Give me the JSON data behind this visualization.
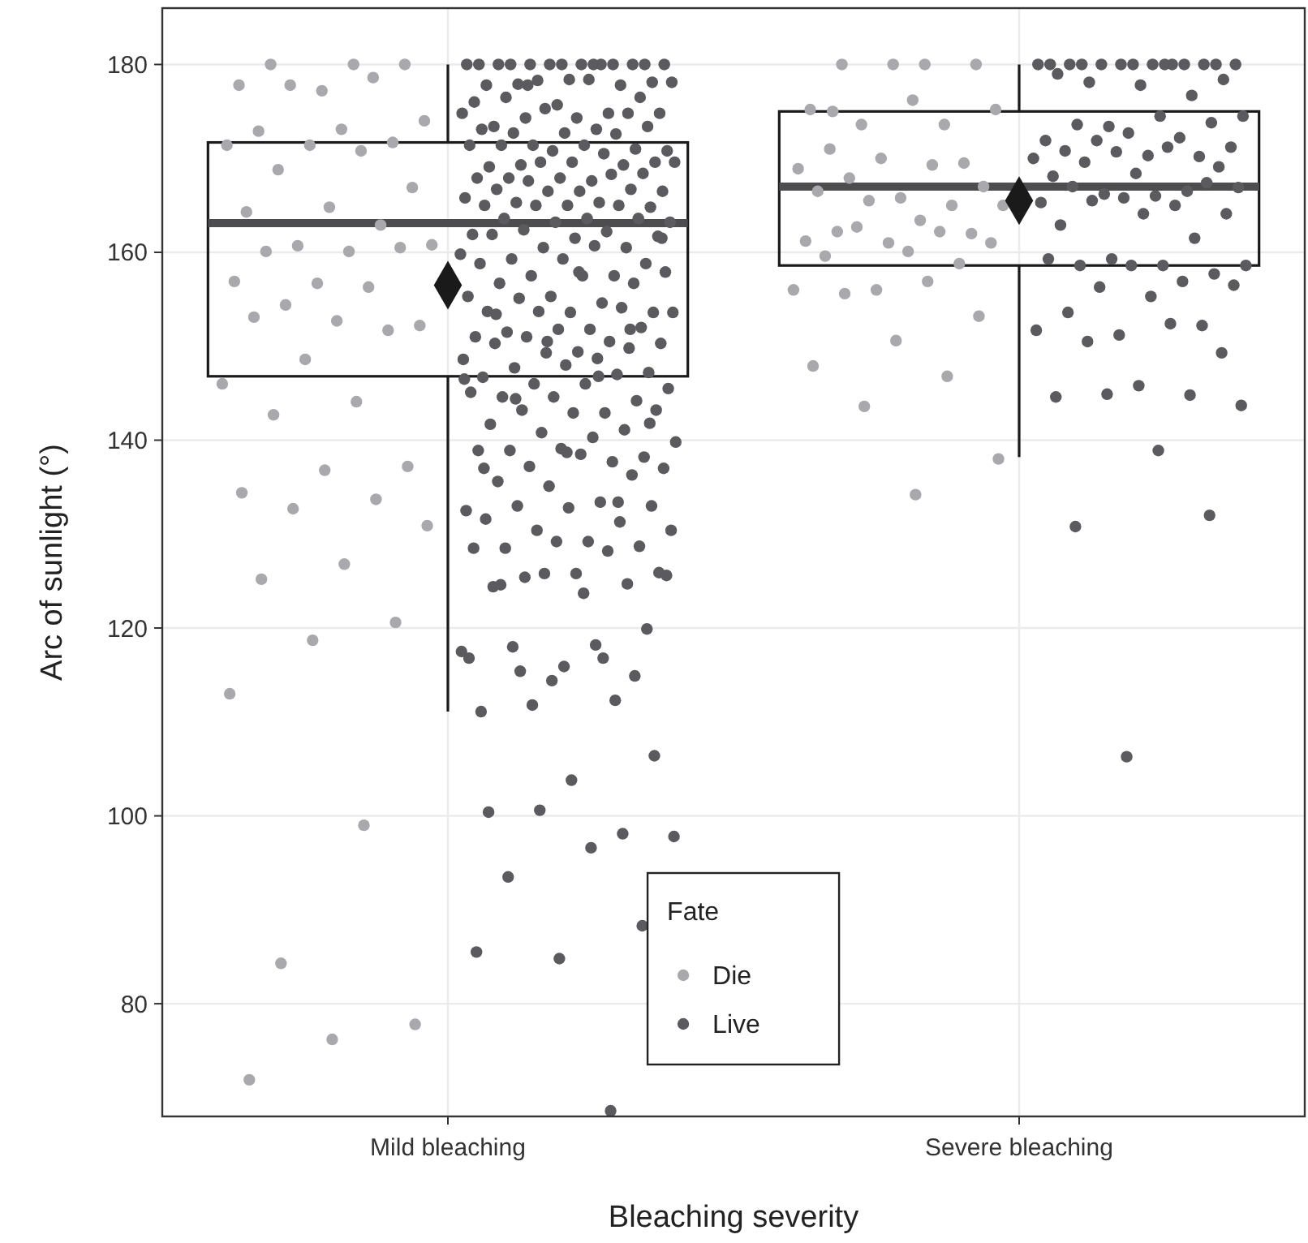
{
  "chart_data": {
    "type": "box",
    "xlabel": "Bleaching severity",
    "ylabel": "Arc of sunlight (°)",
    "legend_title": "Fate",
    "categories": [
      "Mild bleaching",
      "Severe bleaching"
    ],
    "ylim": [
      68,
      186
    ],
    "yticks": [
      80,
      100,
      120,
      140,
      160,
      180
    ],
    "grid": true,
    "legend": "bottom",
    "marker": "circle",
    "series": [
      {
        "color": "#1a1a1a",
        "boxes": [
          {
            "low": 111.1,
            "q1": 146.8,
            "median": 163.1,
            "q3": 171.7,
            "high": 180,
            "mean": 156.5
          },
          {
            "low": 138.2,
            "q1": 158.6,
            "median": 167.0,
            "q3": 175.0,
            "high": 180,
            "mean": 165.5
          }
        ]
      },
      {
        "type": "scatter",
        "name": "Die",
        "color": "#a9a9ad",
        "x": [
          "Mild bleaching",
          "Mild bleaching",
          "Mild bleaching",
          "Mild bleaching",
          "Mild bleaching",
          "Mild bleaching",
          "Mild bleaching",
          "Mild bleaching",
          "Mild bleaching",
          "Mild bleaching",
          "Mild bleaching",
          "Mild bleaching",
          "Mild bleaching",
          "Mild bleaching",
          "Mild bleaching",
          "Mild bleaching",
          "Mild bleaching",
          "Mild bleaching",
          "Mild bleaching",
          "Mild bleaching",
          "Mild bleaching",
          "Mild bleaching",
          "Mild bleaching",
          "Mild bleaching",
          "Mild bleaching",
          "Mild bleaching",
          "Mild bleaching",
          "Mild bleaching",
          "Mild bleaching",
          "Mild bleaching",
          "Mild bleaching",
          "Mild bleaching",
          "Mild bleaching",
          "Mild bleaching",
          "Mild bleaching",
          "Mild bleaching",
          "Mild bleaching",
          "Mild bleaching",
          "Mild bleaching",
          "Mild bleaching",
          "Mild bleaching",
          "Mild bleaching",
          "Mild bleaching",
          "Mild bleaching",
          "Mild bleaching",
          "Mild bleaching",
          "Mild bleaching",
          "Mild bleaching",
          "Mild bleaching",
          "Mild bleaching",
          "Mild bleaching",
          "Mild bleaching",
          "Severe bleaching",
          "Severe bleaching",
          "Severe bleaching",
          "Severe bleaching",
          "Severe bleaching",
          "Severe bleaching",
          "Severe bleaching",
          "Severe bleaching",
          "Severe bleaching",
          "Severe bleaching",
          "Severe bleaching",
          "Severe bleaching",
          "Severe bleaching",
          "Severe bleaching",
          "Severe bleaching",
          "Severe bleaching",
          "Severe bleaching",
          "Severe bleaching",
          "Severe bleaching",
          "Severe bleaching",
          "Severe bleaching",
          "Severe bleaching",
          "Severe bleaching",
          "Severe bleaching",
          "Severe bleaching",
          "Severe bleaching",
          "Severe bleaching",
          "Severe bleaching",
          "Severe bleaching",
          "Severe bleaching",
          "Severe bleaching",
          "Severe bleaching",
          "Severe bleaching",
          "Severe bleaching",
          "Severe bleaching",
          "Severe bleaching",
          "Severe bleaching",
          "Severe bleaching",
          "Severe bleaching",
          "Severe bleaching",
          "Severe bleaching",
          "Severe bleaching",
          "Severe bleaching",
          "Severe bleaching"
        ],
        "values": [
          180,
          180,
          180,
          177.2,
          177.8,
          178.6,
          177.8,
          174.0,
          173.1,
          172.9,
          171.7,
          171.4,
          171.4,
          170.8,
          168.8,
          166.9,
          164.8,
          164.3,
          162.9,
          160.7,
          160.8,
          160.1,
          160.1,
          160.5,
          156.7,
          156.9,
          156.3,
          154.4,
          152.2,
          152.7,
          153.1,
          151.7,
          148.6,
          146.0,
          144.1,
          142.7,
          137.2,
          136.8,
          134.4,
          133.7,
          132.7,
          130.9,
          126.8,
          125.2,
          120.6,
          118.7,
          113.0,
          99.0,
          84.3,
          77.8,
          76.2,
          71.9,
          180,
          180,
          180,
          180,
          175.2,
          173.6,
          173.6,
          175.2,
          176.2,
          171.0,
          169.5,
          170.0,
          168.9,
          169.3,
          167.9,
          167.0,
          165.8,
          166.5,
          165.0,
          165.5,
          165.0,
          163.4,
          162.2,
          162.0,
          161.0,
          161.2,
          162.2,
          162.7,
          161.0,
          160.1,
          159.6,
          158.8,
          156.0,
          156.0,
          156.9,
          155.6,
          153.2,
          150.6,
          147.9,
          146.8,
          143.6,
          138.0,
          134.2,
          175.0
        ]
      },
      {
        "type": "scatter",
        "name": "Live",
        "color": "#5b5b5f",
        "x": [
          "Mild bleaching",
          "Mild bleaching",
          "Mild bleaching",
          "Mild bleaching",
          "Mild bleaching",
          "Mild bleaching",
          "Mild bleaching",
          "Mild bleaching",
          "Mild bleaching",
          "Mild bleaching",
          "Mild bleaching",
          "Mild bleaching",
          "Mild bleaching",
          "Mild bleaching",
          "Mild bleaching",
          "Mild bleaching",
          "Mild bleaching",
          "Mild bleaching",
          "Mild bleaching",
          "Mild bleaching",
          "Mild bleaching",
          "Mild bleaching",
          "Mild bleaching",
          "Mild bleaching",
          "Mild bleaching",
          "Mild bleaching",
          "Mild bleaching",
          "Mild bleaching",
          "Mild bleaching",
          "Mild bleaching",
          "Mild bleaching",
          "Mild bleaching",
          "Mild bleaching",
          "Mild bleaching",
          "Mild bleaching",
          "Mild bleaching",
          "Mild bleaching",
          "Mild bleaching",
          "Mild bleaching",
          "Mild bleaching",
          "Mild bleaching",
          "Mild bleaching",
          "Mild bleaching",
          "Mild bleaching",
          "Mild bleaching",
          "Mild bleaching",
          "Mild bleaching",
          "Mild bleaching",
          "Mild bleaching",
          "Mild bleaching",
          "Mild bleaching",
          "Mild bleaching",
          "Mild bleaching",
          "Mild bleaching",
          "Mild bleaching",
          "Mild bleaching",
          "Mild bleaching",
          "Mild bleaching",
          "Mild bleaching",
          "Mild bleaching",
          "Mild bleaching",
          "Mild bleaching",
          "Mild bleaching",
          "Mild bleaching",
          "Mild bleaching",
          "Mild bleaching",
          "Mild bleaching",
          "Mild bleaching",
          "Mild bleaching",
          "Mild bleaching",
          "Mild bleaching",
          "Mild bleaching",
          "Mild bleaching",
          "Mild bleaching",
          "Mild bleaching",
          "Mild bleaching",
          "Mild bleaching",
          "Mild bleaching",
          "Mild bleaching",
          "Mild bleaching",
          "Mild bleaching",
          "Mild bleaching",
          "Mild bleaching",
          "Mild bleaching",
          "Mild bleaching",
          "Mild bleaching",
          "Mild bleaching",
          "Mild bleaching",
          "Mild bleaching",
          "Mild bleaching",
          "Mild bleaching",
          "Mild bleaching",
          "Mild bleaching",
          "Mild bleaching",
          "Mild bleaching",
          "Mild bleaching",
          "Mild bleaching",
          "Mild bleaching",
          "Mild bleaching",
          "Mild bleaching",
          "Mild bleaching",
          "Mild bleaching",
          "Mild bleaching",
          "Mild bleaching",
          "Mild bleaching",
          "Mild bleaching",
          "Mild bleaching",
          "Mild bleaching",
          "Mild bleaching",
          "Mild bleaching",
          "Mild bleaching",
          "Mild bleaching",
          "Mild bleaching",
          "Mild bleaching",
          "Mild bleaching",
          "Mild bleaching",
          "Mild bleaching",
          "Mild bleaching",
          "Mild bleaching",
          "Mild bleaching",
          "Mild bleaching",
          "Mild bleaching",
          "Mild bleaching",
          "Mild bleaching",
          "Mild bleaching",
          "Mild bleaching",
          "Mild bleaching",
          "Mild bleaching",
          "Mild bleaching",
          "Mild bleaching",
          "Mild bleaching",
          "Mild bleaching",
          "Mild bleaching",
          "Mild bleaching",
          "Mild bleaching",
          "Mild bleaching",
          "Mild bleaching",
          "Mild bleaching",
          "Mild bleaching",
          "Mild bleaching",
          "Mild bleaching",
          "Mild bleaching",
          "Mild bleaching",
          "Mild bleaching",
          "Mild bleaching",
          "Mild bleaching",
          "Mild bleaching",
          "Mild bleaching",
          "Mild bleaching",
          "Mild bleaching",
          "Mild bleaching",
          "Mild bleaching",
          "Mild bleaching",
          "Mild bleaching",
          "Mild bleaching",
          "Mild bleaching",
          "Mild bleaching",
          "Mild bleaching",
          "Mild bleaching",
          "Mild bleaching",
          "Mild bleaching",
          "Mild bleaching",
          "Mild bleaching",
          "Mild bleaching",
          "Mild bleaching",
          "Mild bleaching",
          "Mild bleaching",
          "Mild bleaching",
          "Mild bleaching",
          "Mild bleaching",
          "Mild bleaching",
          "Mild bleaching",
          "Mild bleaching",
          "Mild bleaching",
          "Mild bleaching",
          "Mild bleaching",
          "Mild bleaching",
          "Mild bleaching",
          "Mild bleaching",
          "Mild bleaching",
          "Mild bleaching",
          "Mild bleaching",
          "Mild bleaching",
          "Mild bleaching",
          "Mild bleaching",
          "Mild bleaching",
          "Mild bleaching",
          "Mild bleaching",
          "Mild bleaching",
          "Mild bleaching",
          "Mild bleaching",
          "Mild bleaching",
          "Mild bleaching",
          "Mild bleaching",
          "Mild bleaching",
          "Mild bleaching",
          "Mild bleaching",
          "Mild bleaching",
          "Mild bleaching",
          "Mild bleaching",
          "Mild bleaching",
          "Mild bleaching",
          "Mild bleaching",
          "Mild bleaching",
          "Mild bleaching",
          "Mild bleaching",
          "Mild bleaching",
          "Mild bleaching",
          "Mild bleaching",
          "Mild bleaching",
          "Mild bleaching",
          "Mild bleaching",
          "Mild bleaching",
          "Mild bleaching",
          "Mild bleaching",
          "Mild bleaching",
          "Mild bleaching",
          "Mild bleaching",
          "Severe bleaching",
          "Severe bleaching",
          "Severe bleaching",
          "Severe bleaching",
          "Severe bleaching",
          "Severe bleaching",
          "Severe bleaching",
          "Severe bleaching",
          "Severe bleaching",
          "Severe bleaching",
          "Severe bleaching",
          "Severe bleaching",
          "Severe bleaching",
          "Severe bleaching",
          "Severe bleaching",
          "Severe bleaching",
          "Severe bleaching",
          "Severe bleaching",
          "Severe bleaching",
          "Severe bleaching",
          "Severe bleaching",
          "Severe bleaching",
          "Severe bleaching",
          "Severe bleaching",
          "Severe bleaching",
          "Severe bleaching",
          "Severe bleaching",
          "Severe bleaching",
          "Severe bleaching",
          "Severe bleaching",
          "Severe bleaching",
          "Severe bleaching",
          "Severe bleaching",
          "Severe bleaching",
          "Severe bleaching",
          "Severe bleaching",
          "Severe bleaching",
          "Severe bleaching",
          "Severe bleaching",
          "Severe bleaching",
          "Severe bleaching",
          "Severe bleaching",
          "Severe bleaching",
          "Severe bleaching",
          "Severe bleaching",
          "Severe bleaching",
          "Severe bleaching",
          "Severe bleaching",
          "Severe bleaching",
          "Severe bleaching",
          "Severe bleaching",
          "Severe bleaching",
          "Severe bleaching",
          "Severe bleaching",
          "Severe bleaching",
          "Severe bleaching",
          "Severe bleaching",
          "Severe bleaching",
          "Severe bleaching",
          "Severe bleaching",
          "Severe bleaching",
          "Severe bleaching",
          "Severe bleaching",
          "Severe bleaching",
          "Severe bleaching",
          "Severe bleaching",
          "Severe bleaching",
          "Severe bleaching",
          "Severe bleaching",
          "Severe bleaching",
          "Severe bleaching",
          "Severe bleaching",
          "Severe bleaching",
          "Severe bleaching",
          "Severe bleaching",
          "Severe bleaching",
          "Severe bleaching",
          "Severe bleaching",
          "Severe bleaching",
          "Severe bleaching"
        ],
        "values": [
          180,
          180,
          180,
          180,
          180,
          180,
          180,
          180,
          180,
          180,
          180,
          180,
          180,
          180,
          177.9,
          178.1,
          178.4,
          177.8,
          177.8,
          178.3,
          178.1,
          178.4,
          176.5,
          176.5,
          175.7,
          176.0,
          174.8,
          174.3,
          174.8,
          174.3,
          173.4,
          174.8,
          175.3,
          174.8,
          173.1,
          172.7,
          173.4,
          172.7,
          173.1,
          172.6,
          171.4,
          170.8,
          171.4,
          171.4,
          171.0,
          170.8,
          171.4,
          170.5,
          169.3,
          169.6,
          169.6,
          169.1,
          169.3,
          169.6,
          169.6,
          167.6,
          167.9,
          168.4,
          167.9,
          167.9,
          168.3,
          167.6,
          166.5,
          166.5,
          166.7,
          166.7,
          166.5,
          165.8,
          165.3,
          165.3,
          164.8,
          165.0,
          165.0,
          165.0,
          165.0,
          163.2,
          163.6,
          163.6,
          163.6,
          163.2,
          161.9,
          162.2,
          162.4,
          161.7,
          161.5,
          161.9,
          160.5,
          160.5,
          159.8,
          160.7,
          159.3,
          158.8,
          159.3,
          158.8,
          157.5,
          157.5,
          157.9,
          157.5,
          156.7,
          156.7,
          155.3,
          155.3,
          154.6,
          155.1,
          153.6,
          153.6,
          153.7,
          154.1,
          153.7,
          153.6,
          151.8,
          151.5,
          152.0,
          151.8,
          151.0,
          150.5,
          151.0,
          150.3,
          149.4,
          150.3,
          149.8,
          149.3,
          148.6,
          148.7,
          147.7,
          147.2,
          148.0,
          146.7,
          147.0,
          146.0,
          145.5,
          146.0,
          144.6,
          144.2,
          144.6,
          145.1,
          142.9,
          143.2,
          143.2,
          142.9,
          141.7,
          141.1,
          140.8,
          139.8,
          140.3,
          138.9,
          138.2,
          139.1,
          138.9,
          137.7,
          137.2,
          137.0,
          138.5,
          135.6,
          136.3,
          135.1,
          132.5,
          133.4,
          133.0,
          133.0,
          132.8,
          131.6,
          131.3,
          130.4,
          130.4,
          129.2,
          128.5,
          128.7,
          129.2,
          128.5,
          128.2,
          125.4,
          125.9,
          125.8,
          124.4,
          124.7,
          125.8,
          117.5,
          118.2,
          118.0,
          119.9,
          115.9,
          111.1,
          112.3,
          111.8,
          125.6,
          123.7,
          124.6,
          114.9,
          114.4,
          116.8,
          116.8,
          115.4,
          106.4,
          103.8,
          100.4,
          98.1,
          100.6,
          97.8,
          96.6,
          93.5,
          88.3,
          84.8,
          85.5,
          68.6,
          177.8,
          161.5,
          157.9,
          153.4,
          151.8,
          150.5,
          146.5,
          146.8,
          144.4,
          141.8,
          138.7,
          137.0,
          133.4,
          180,
          180,
          180,
          180,
          180,
          180,
          180,
          180,
          180,
          180,
          180,
          180,
          180,
          180,
          178.1,
          178.4,
          177.8,
          179.0,
          176.7,
          173.4,
          174.5,
          174.5,
          173.6,
          173.8,
          172.7,
          171.9,
          172.2,
          171.9,
          171.2,
          170.3,
          170.8,
          170.2,
          170.7,
          170.0,
          171.2,
          169.6,
          169.1,
          168.4,
          168.1,
          166.5,
          166.2,
          166.9,
          166.0,
          167.0,
          167.4,
          165.8,
          165.3,
          165.0,
          165.5,
          164.1,
          164.1,
          162.9,
          161.5,
          159.3,
          158.6,
          158.6,
          158.6,
          157.7,
          158.6,
          159.3,
          156.9,
          156.3,
          156.5,
          155.3,
          153.6,
          152.2,
          151.2,
          151.7,
          152.4,
          150.5,
          149.3,
          145.8,
          144.6,
          144.8,
          144.9,
          143.7,
          138.9,
          130.8,
          132.0,
          106.3
        ]
      }
    ]
  }
}
